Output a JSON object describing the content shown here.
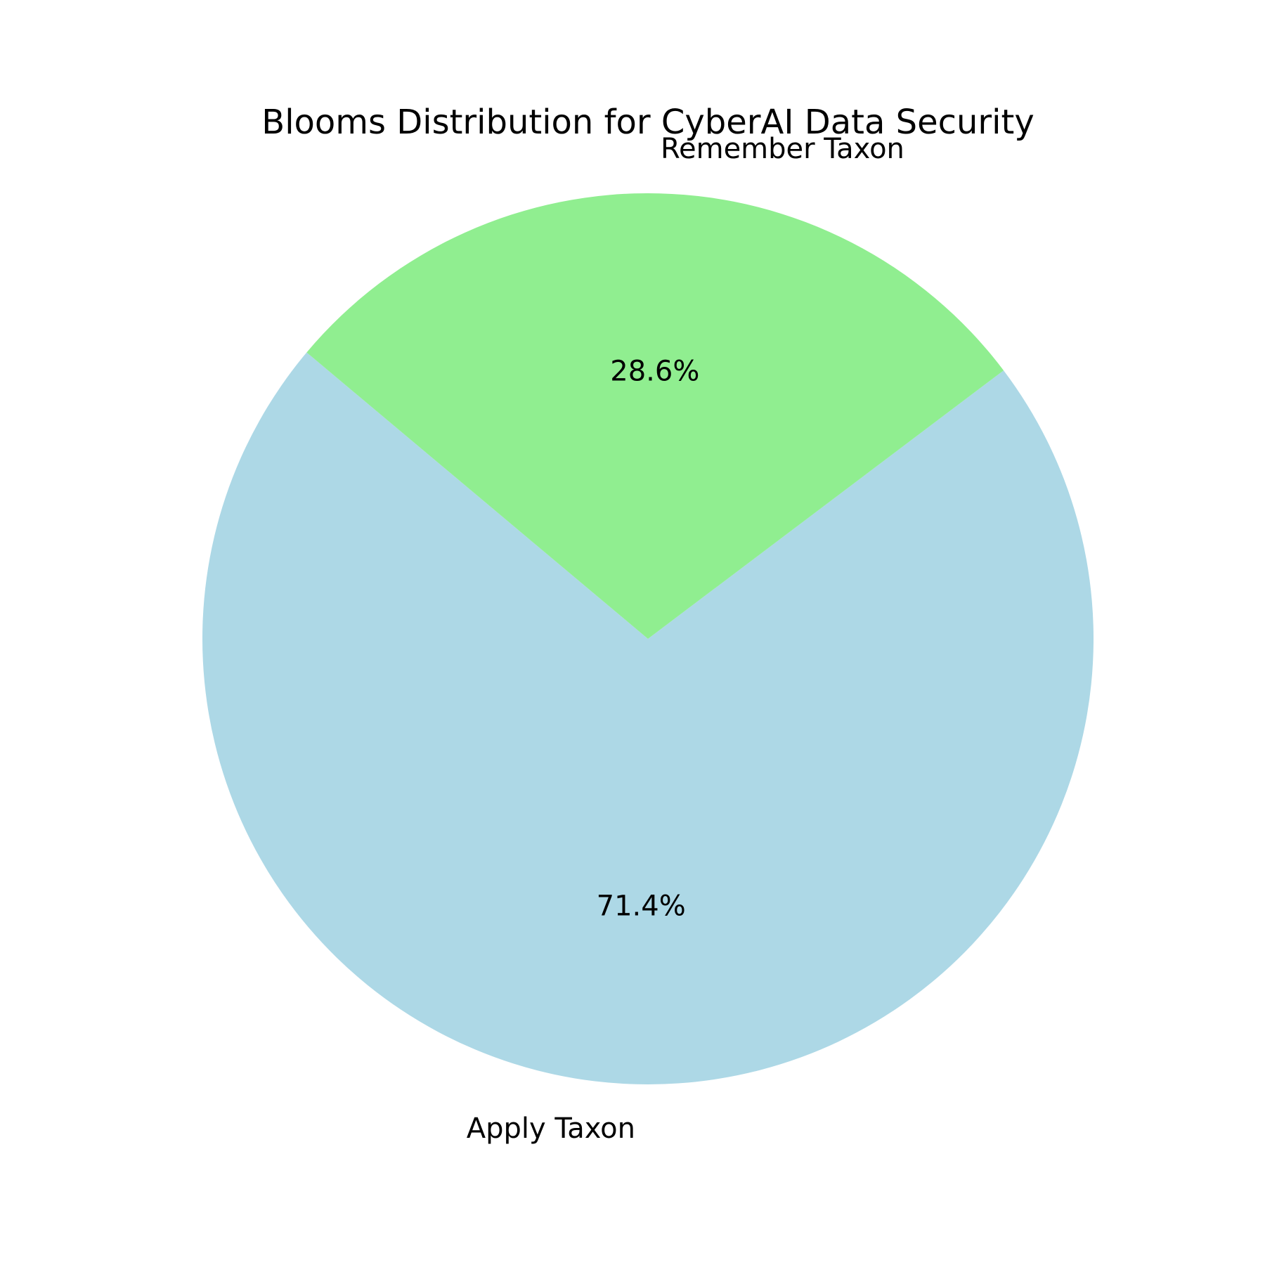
{
  "chart_data": {
    "type": "pie",
    "title": "Blooms Distribution for CyberAI Data Security",
    "slices": [
      {
        "label": "Apply Taxon",
        "percent_label": "71.4%",
        "value": 71.4,
        "color": "#add8e6"
      },
      {
        "label": "Remember Taxon",
        "percent_label": "28.6%",
        "value": 28.6,
        "color": "#90ee90"
      }
    ],
    "start_angle_deg": 140,
    "direction": "counterclockwise",
    "legend": "none"
  }
}
